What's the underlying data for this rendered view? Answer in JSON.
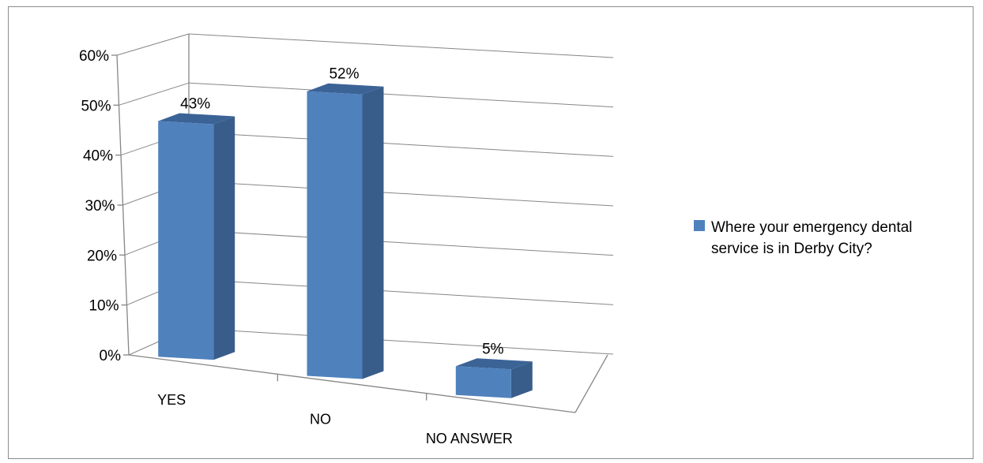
{
  "chart_data": {
    "type": "bar",
    "style": "3d-column",
    "categories": [
      "YES",
      "NO",
      "NO ANSWER"
    ],
    "series": [
      {
        "name": "Where your emergency dental service is in Derby City?",
        "values": [
          0.43,
          0.52,
          0.05
        ]
      }
    ],
    "data_labels": [
      "43%",
      "52%",
      "5%"
    ],
    "y_ticks": [
      "0%",
      "10%",
      "20%",
      "30%",
      "40%",
      "50%",
      "60%"
    ],
    "ylim": [
      0,
      0.6
    ],
    "grid": true,
    "legend": {
      "position": "right",
      "lines": [
        "Where your emergency dental",
        "service is in Derby City?"
      ]
    },
    "colors": {
      "bar_front": "#4f81bd",
      "bar_side": "#385d8a",
      "bar_top": "#3b6396",
      "grid": "#868686",
      "axis": "#868686"
    }
  }
}
